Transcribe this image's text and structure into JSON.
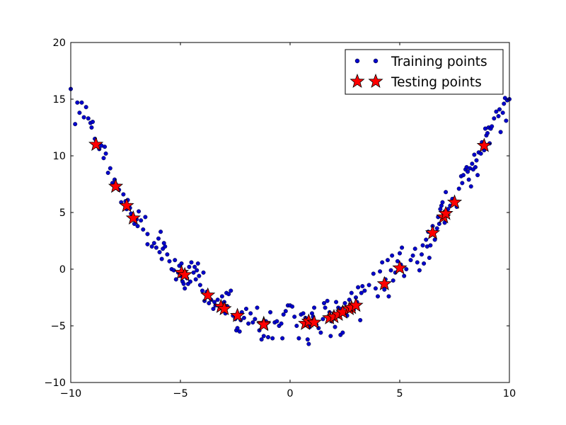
{
  "chart_data": {
    "type": "scatter",
    "title": "",
    "xlabel": "",
    "ylabel": "",
    "xlim": [
      -10,
      10
    ],
    "ylim": [
      -10,
      20
    ],
    "x_ticks": [
      -10,
      -5,
      0,
      5,
      10
    ],
    "y_ticks": [
      -10,
      -5,
      0,
      5,
      10,
      15,
      20
    ],
    "x_tick_labels": [
      "−10",
      "−5",
      "0",
      "5",
      "10"
    ],
    "y_tick_labels": [
      "−10",
      "−5",
      "0",
      "5",
      "10",
      "15",
      "20"
    ],
    "grid": false,
    "legend_position": "top-right",
    "legend": [
      "Training points",
      "Testing points"
    ],
    "series": [
      {
        "name": "Training points",
        "marker": "dot",
        "color": "#0000cc",
        "points": [
          [
            -10.0,
            15.9
          ],
          [
            -9.8,
            12.8
          ],
          [
            -9.7,
            14.7
          ],
          [
            -9.6,
            13.8
          ],
          [
            -9.5,
            14.7
          ],
          [
            -9.4,
            13.4
          ],
          [
            -9.3,
            14.3
          ],
          [
            -9.2,
            13.3
          ],
          [
            -9.1,
            12.9
          ],
          [
            -9.05,
            12.5
          ],
          [
            -9.0,
            13.0
          ],
          [
            -8.9,
            11.5
          ],
          [
            -8.8,
            11.0
          ],
          [
            -8.7,
            10.6
          ],
          [
            -8.6,
            10.9
          ],
          [
            -8.5,
            9.8
          ],
          [
            -8.45,
            10.8
          ],
          [
            -8.4,
            10.2
          ],
          [
            -8.3,
            8.5
          ],
          [
            -8.2,
            8.9
          ],
          [
            -8.1,
            7.6
          ],
          [
            -8.0,
            7.9
          ],
          [
            -7.9,
            7.4
          ],
          [
            -7.8,
            7.0
          ],
          [
            -7.7,
            5.9
          ],
          [
            -7.6,
            6.6
          ],
          [
            -7.5,
            6.0
          ],
          [
            -7.45,
            5.3
          ],
          [
            -7.4,
            6.1
          ],
          [
            -7.3,
            5.4
          ],
          [
            -7.25,
            4.9
          ],
          [
            -7.2,
            4.6
          ],
          [
            -7.1,
            4.0
          ],
          [
            -7.0,
            4.4
          ],
          [
            -6.95,
            3.8
          ],
          [
            -6.9,
            5.1
          ],
          [
            -6.8,
            4.3
          ],
          [
            -6.7,
            3.5
          ],
          [
            -6.6,
            4.6
          ],
          [
            -6.5,
            3.1
          ],
          [
            -6.3,
            2.0
          ],
          [
            -6.2,
            2.3
          ],
          [
            -6.1,
            1.9
          ],
          [
            -6.0,
            2.7
          ],
          [
            -5.95,
            1.5
          ],
          [
            -5.9,
            3.3
          ],
          [
            -5.85,
            0.9
          ],
          [
            -5.8,
            1.8
          ],
          [
            -5.7,
            2.0
          ],
          [
            -5.6,
            1.3
          ],
          [
            -5.5,
            0.7
          ],
          [
            -5.4,
            0.0
          ],
          [
            -5.3,
            -0.1
          ],
          [
            -5.25,
            0.8
          ],
          [
            -5.2,
            -0.9
          ],
          [
            -5.1,
            -0.3
          ],
          [
            -5.05,
            0.3
          ],
          [
            -5.0,
            -0.6
          ],
          [
            -4.95,
            0.5
          ],
          [
            -4.9,
            -1.1
          ],
          [
            -4.85,
            -1.3
          ],
          [
            -4.8,
            -1.7
          ],
          [
            -4.75,
            -0.4
          ],
          [
            -4.7,
            -0.8
          ],
          [
            -4.65,
            -1.3
          ],
          [
            -4.6,
            0.2
          ],
          [
            -4.55,
            -1.1
          ],
          [
            -4.5,
            0.6
          ],
          [
            -4.4,
            -0.3
          ],
          [
            -4.35,
            0.2
          ],
          [
            -4.3,
            -0.9
          ],
          [
            -4.25,
            -0.1
          ],
          [
            -4.2,
            0.5
          ],
          [
            -4.15,
            -0.6
          ],
          [
            -4.1,
            -1.4
          ],
          [
            -4.0,
            -1.9
          ],
          [
            -3.95,
            -0.3
          ],
          [
            -3.9,
            -2.8
          ],
          [
            -3.8,
            -2.0
          ],
          [
            -3.7,
            -3.0
          ],
          [
            -3.6,
            -2.7
          ],
          [
            -3.5,
            -3.5
          ],
          [
            -3.45,
            -2.9
          ],
          [
            -3.4,
            -3.2
          ],
          [
            -3.3,
            -2.7
          ],
          [
            -3.2,
            -3.4
          ],
          [
            -3.1,
            -2.4
          ],
          [
            -3.0,
            -2.9
          ],
          [
            -2.95,
            -3.9
          ],
          [
            -2.9,
            -2.1
          ],
          [
            -2.85,
            -3.3
          ],
          [
            -2.8,
            -2.2
          ],
          [
            -2.7,
            -1.9
          ],
          [
            -2.6,
            -4.1
          ],
          [
            -2.5,
            -4.4
          ],
          [
            -2.45,
            -5.4
          ],
          [
            -2.4,
            -5.2
          ],
          [
            -2.3,
            -5.5
          ],
          [
            -2.25,
            -4.5
          ],
          [
            -2.2,
            -3.8
          ],
          [
            -2.1,
            -4.3
          ],
          [
            -2.0,
            -3.5
          ],
          [
            -1.9,
            -4.8
          ],
          [
            -1.8,
            -3.9
          ],
          [
            -1.7,
            -4.7
          ],
          [
            -1.6,
            -4.4
          ],
          [
            -1.5,
            -3.4
          ],
          [
            -1.4,
            -5.4
          ],
          [
            -1.3,
            -6.2
          ],
          [
            -1.2,
            -5.9
          ],
          [
            -1.1,
            -4.6
          ],
          [
            -1.0,
            -6.0
          ],
          [
            -0.9,
            -3.8
          ],
          [
            -0.8,
            -6.1
          ],
          [
            -0.7,
            -4.7
          ],
          [
            -0.6,
            -4.6
          ],
          [
            -0.5,
            -5.0
          ],
          [
            -0.4,
            -4.8
          ],
          [
            -0.35,
            -6.1
          ],
          [
            -0.3,
            -4.0
          ],
          [
            -0.2,
            -3.7
          ],
          [
            -0.1,
            -3.2
          ],
          [
            0.0,
            -3.2
          ],
          [
            0.1,
            -3.3
          ],
          [
            0.2,
            -4.2
          ],
          [
            0.3,
            -5.0
          ],
          [
            0.4,
            -6.1
          ],
          [
            0.5,
            -4.0
          ],
          [
            0.6,
            -3.9
          ],
          [
            0.7,
            -4.3
          ],
          [
            0.8,
            -6.2
          ],
          [
            0.85,
            -6.6
          ],
          [
            0.9,
            -5.1
          ],
          [
            1.0,
            -3.9
          ],
          [
            1.05,
            -4.2
          ],
          [
            1.1,
            -3.4
          ],
          [
            1.2,
            -4.9
          ],
          [
            1.3,
            -5.2
          ],
          [
            1.4,
            -5.6
          ],
          [
            1.5,
            -4.4
          ],
          [
            1.55,
            -3.0
          ],
          [
            1.6,
            -3.4
          ],
          [
            1.7,
            -2.8
          ],
          [
            1.8,
            -3.8
          ],
          [
            1.85,
            -5.9
          ],
          [
            1.9,
            -4.6
          ],
          [
            2.0,
            -3.9
          ],
          [
            2.05,
            -5.1
          ],
          [
            2.1,
            -2.9
          ],
          [
            2.2,
            -3.4
          ],
          [
            2.3,
            -5.8
          ],
          [
            2.35,
            -3.5
          ],
          [
            2.4,
            -5.6
          ],
          [
            2.5,
            -3.0
          ],
          [
            2.6,
            -4.1
          ],
          [
            2.7,
            -2.7
          ],
          [
            2.8,
            -2.1
          ],
          [
            2.9,
            -3.6
          ],
          [
            3.0,
            -2.5
          ],
          [
            3.05,
            -2.9
          ],
          [
            3.1,
            -1.6
          ],
          [
            3.2,
            -4.5
          ],
          [
            3.25,
            -2.1
          ],
          [
            3.3,
            -1.5
          ],
          [
            3.4,
            -1.9
          ],
          [
            3.6,
            -1.4
          ],
          [
            3.8,
            -0.4
          ],
          [
            3.9,
            -1.7
          ],
          [
            4.0,
            -2.4
          ],
          [
            4.1,
            -0.2
          ],
          [
            4.2,
            0.6
          ],
          [
            4.3,
            -1.8
          ],
          [
            4.35,
            -0.9
          ],
          [
            4.45,
            0.8
          ],
          [
            4.5,
            -2.4
          ],
          [
            4.6,
            -0.1
          ],
          [
            4.65,
            1.2
          ],
          [
            4.7,
            -1.0
          ],
          [
            4.8,
            -0.3
          ],
          [
            4.9,
            0.7
          ],
          [
            5.0,
            1.4
          ],
          [
            5.05,
            0.4
          ],
          [
            5.1,
            1.9
          ],
          [
            5.2,
            -0.6
          ],
          [
            5.3,
            0.0
          ],
          [
            5.5,
            0.8
          ],
          [
            5.6,
            1.2
          ],
          [
            5.7,
            1.8
          ],
          [
            5.8,
            0.6
          ],
          [
            5.9,
            -0.1
          ],
          [
            6.0,
            1.3
          ],
          [
            6.05,
            2.1
          ],
          [
            6.1,
            0.5
          ],
          [
            6.2,
            2.6
          ],
          [
            6.25,
            2.0
          ],
          [
            6.3,
            3.3
          ],
          [
            6.35,
            1.0
          ],
          [
            6.4,
            2.1
          ],
          [
            6.5,
            3.8
          ],
          [
            6.6,
            2.6
          ],
          [
            6.7,
            3.6
          ],
          [
            6.75,
            4.6
          ],
          [
            6.8,
            4.0
          ],
          [
            6.85,
            5.3
          ],
          [
            6.9,
            5.6
          ],
          [
            6.95,
            5.9
          ],
          [
            7.0,
            4.9
          ],
          [
            7.05,
            4.1
          ],
          [
            7.1,
            6.8
          ],
          [
            7.2,
            5.3
          ],
          [
            7.3,
            5.6
          ],
          [
            7.4,
            6.2
          ],
          [
            7.5,
            6.0
          ],
          [
            7.6,
            5.5
          ],
          [
            7.7,
            7.1
          ],
          [
            7.8,
            8.2
          ],
          [
            7.85,
            7.6
          ],
          [
            7.9,
            8.3
          ],
          [
            8.0,
            8.8
          ],
          [
            8.05,
            9.0
          ],
          [
            8.1,
            8.6
          ],
          [
            8.15,
            7.9
          ],
          [
            8.2,
            8.9
          ],
          [
            8.25,
            7.3
          ],
          [
            8.3,
            9.3
          ],
          [
            8.35,
            8.8
          ],
          [
            8.4,
            10.1
          ],
          [
            8.45,
            9.0
          ],
          [
            8.5,
            9.6
          ],
          [
            8.55,
            8.3
          ],
          [
            8.6,
            10.3
          ],
          [
            8.7,
            10.2
          ],
          [
            8.75,
            11.2
          ],
          [
            8.8,
            10.8
          ],
          [
            8.85,
            10.5
          ],
          [
            8.9,
            12.4
          ],
          [
            8.95,
            11.8
          ],
          [
            9.0,
            12.0
          ],
          [
            9.05,
            12.5
          ],
          [
            9.1,
            11.1
          ],
          [
            9.15,
            12.4
          ],
          [
            9.2,
            12.6
          ],
          [
            9.3,
            13.3
          ],
          [
            9.4,
            13.9
          ],
          [
            9.5,
            13.5
          ],
          [
            9.55,
            14.1
          ],
          [
            9.6,
            12.1
          ],
          [
            9.7,
            13.8
          ],
          [
            9.75,
            14.6
          ],
          [
            9.8,
            15.1
          ],
          [
            9.85,
            13.1
          ],
          [
            9.9,
            14.9
          ],
          [
            10.0,
            15.0
          ],
          [
            -3.75,
            -2.3
          ],
          [
            -5.75,
            2.3
          ],
          [
            -6.5,
            2.2
          ]
        ]
      },
      {
        "name": "Testing points",
        "marker": "star",
        "color": "#ff0000",
        "points": [
          [
            -8.85,
            11.0
          ],
          [
            -7.95,
            7.3
          ],
          [
            -7.45,
            5.6
          ],
          [
            -7.15,
            4.5
          ],
          [
            -4.95,
            -0.3
          ],
          [
            -4.8,
            -0.5
          ],
          [
            -3.75,
            -2.3
          ],
          [
            -3.15,
            -3.3
          ],
          [
            -3.0,
            -3.5
          ],
          [
            -2.4,
            -4.1
          ],
          [
            -1.2,
            -4.8
          ],
          [
            -1.2,
            -4.9
          ],
          [
            0.7,
            -4.8
          ],
          [
            0.85,
            -4.6
          ],
          [
            1.1,
            -4.7
          ],
          [
            1.8,
            -4.3
          ],
          [
            2.0,
            -4.2
          ],
          [
            2.2,
            -4.0
          ],
          [
            2.4,
            -3.8
          ],
          [
            2.7,
            -3.5
          ],
          [
            2.8,
            -3.4
          ],
          [
            3.0,
            -3.2
          ],
          [
            4.3,
            -1.3
          ],
          [
            5.0,
            0.1
          ],
          [
            6.5,
            3.2
          ],
          [
            7.0,
            4.6
          ],
          [
            7.1,
            4.9
          ],
          [
            7.5,
            5.9
          ],
          [
            8.85,
            10.9
          ]
        ]
      }
    ]
  },
  "legend": {
    "training_label": "Training points",
    "testing_label": "Testing points"
  }
}
